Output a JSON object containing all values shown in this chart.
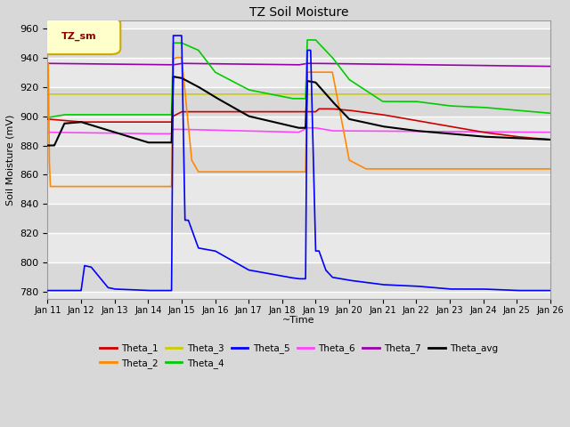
{
  "title": "TZ Soil Moisture",
  "xlabel": "~Time",
  "ylabel": "Soil Moisture (mV)",
  "ylim": [
    775,
    965
  ],
  "yticks": [
    780,
    800,
    820,
    840,
    860,
    880,
    900,
    920,
    940,
    960
  ],
  "background_color": "#d8d8d8",
  "plot_bg_color": "#e8e8e8",
  "grid_color": "#ffffff",
  "legend_label": "TZ_sm",
  "legend_label_color": "#8B0000",
  "legend_label_bg": "#ffffcc",
  "legend_label_border": "#ccaa00",
  "colors": {
    "Theta_1": "#cc0000",
    "Theta_2": "#ff8800",
    "Theta_3": "#cccc00",
    "Theta_4": "#00cc00",
    "Theta_5": "#0000ff",
    "Theta_6": "#ff44ff",
    "Theta_7": "#9900aa",
    "Theta_avg": "#000000"
  },
  "figsize": [
    6.4,
    4.8
  ],
  "dpi": 100
}
